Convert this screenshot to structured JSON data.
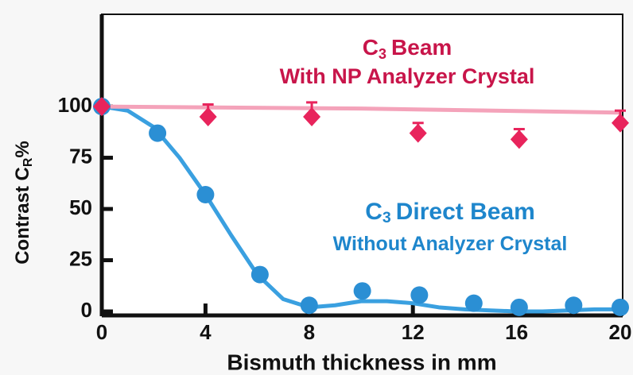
{
  "chart_data": {
    "type": "scatter",
    "xlabel": "Bismuth thickness in mm",
    "ylabel": {
      "text": "Contrast C",
      "sub": "R",
      "after": "%"
    },
    "xlim": [
      0,
      20
    ],
    "ylim": [
      0,
      145
    ],
    "xticks": [
      0,
      4,
      8,
      12,
      16,
      20
    ],
    "yticks": [
      0,
      25,
      50,
      75,
      100
    ],
    "annotations": [
      {
        "text": "C",
        "sub": "3",
        "after": "Beam",
        "color": "#c8154a"
      },
      {
        "text": "With NP Analyzer Crystal",
        "color": "#c8154a"
      },
      {
        "text": "C",
        "sub": "3",
        "after": "Direct Beam",
        "color": "#1e86cc"
      },
      {
        "text": "Without Analyzer Crystal",
        "color": "#1e86cc"
      }
    ],
    "series": [
      {
        "marker": "circle",
        "color": "#2b8fd4",
        "x": [
          0,
          2.15,
          4,
          6.1,
          8,
          10.05,
          12.25,
          14.35,
          16.1,
          18.2,
          20
        ],
        "values": [
          100,
          87,
          57,
          18,
          3,
          10,
          8,
          4,
          2,
          3,
          2
        ]
      },
      {
        "marker": "diamond",
        "color": "#e8245c",
        "x": [
          0,
          4.1,
          8.1,
          12.2,
          16.1,
          20
        ],
        "values": [
          100,
          95,
          95,
          87,
          84,
          92
        ],
        "errors": [
          null,
          6,
          7,
          5,
          5,
          6
        ]
      }
    ],
    "curves": [
      {
        "color": "#3aa0e0",
        "x": [
          0,
          1,
          2,
          3,
          4,
          5,
          6,
          7,
          8,
          9,
          10,
          11,
          12,
          13,
          14,
          15,
          16,
          17,
          18,
          19,
          20
        ],
        "values": [
          100,
          98,
          90,
          75,
          57,
          37,
          18,
          6,
          2,
          3,
          5,
          5,
          4,
          2,
          1,
          0.5,
          0,
          0,
          0.5,
          1,
          1
        ]
      },
      {
        "color": "#f4a3ba",
        "x": [
          0,
          10,
          20
        ],
        "values": [
          100,
          99,
          97
        ]
      }
    ]
  }
}
